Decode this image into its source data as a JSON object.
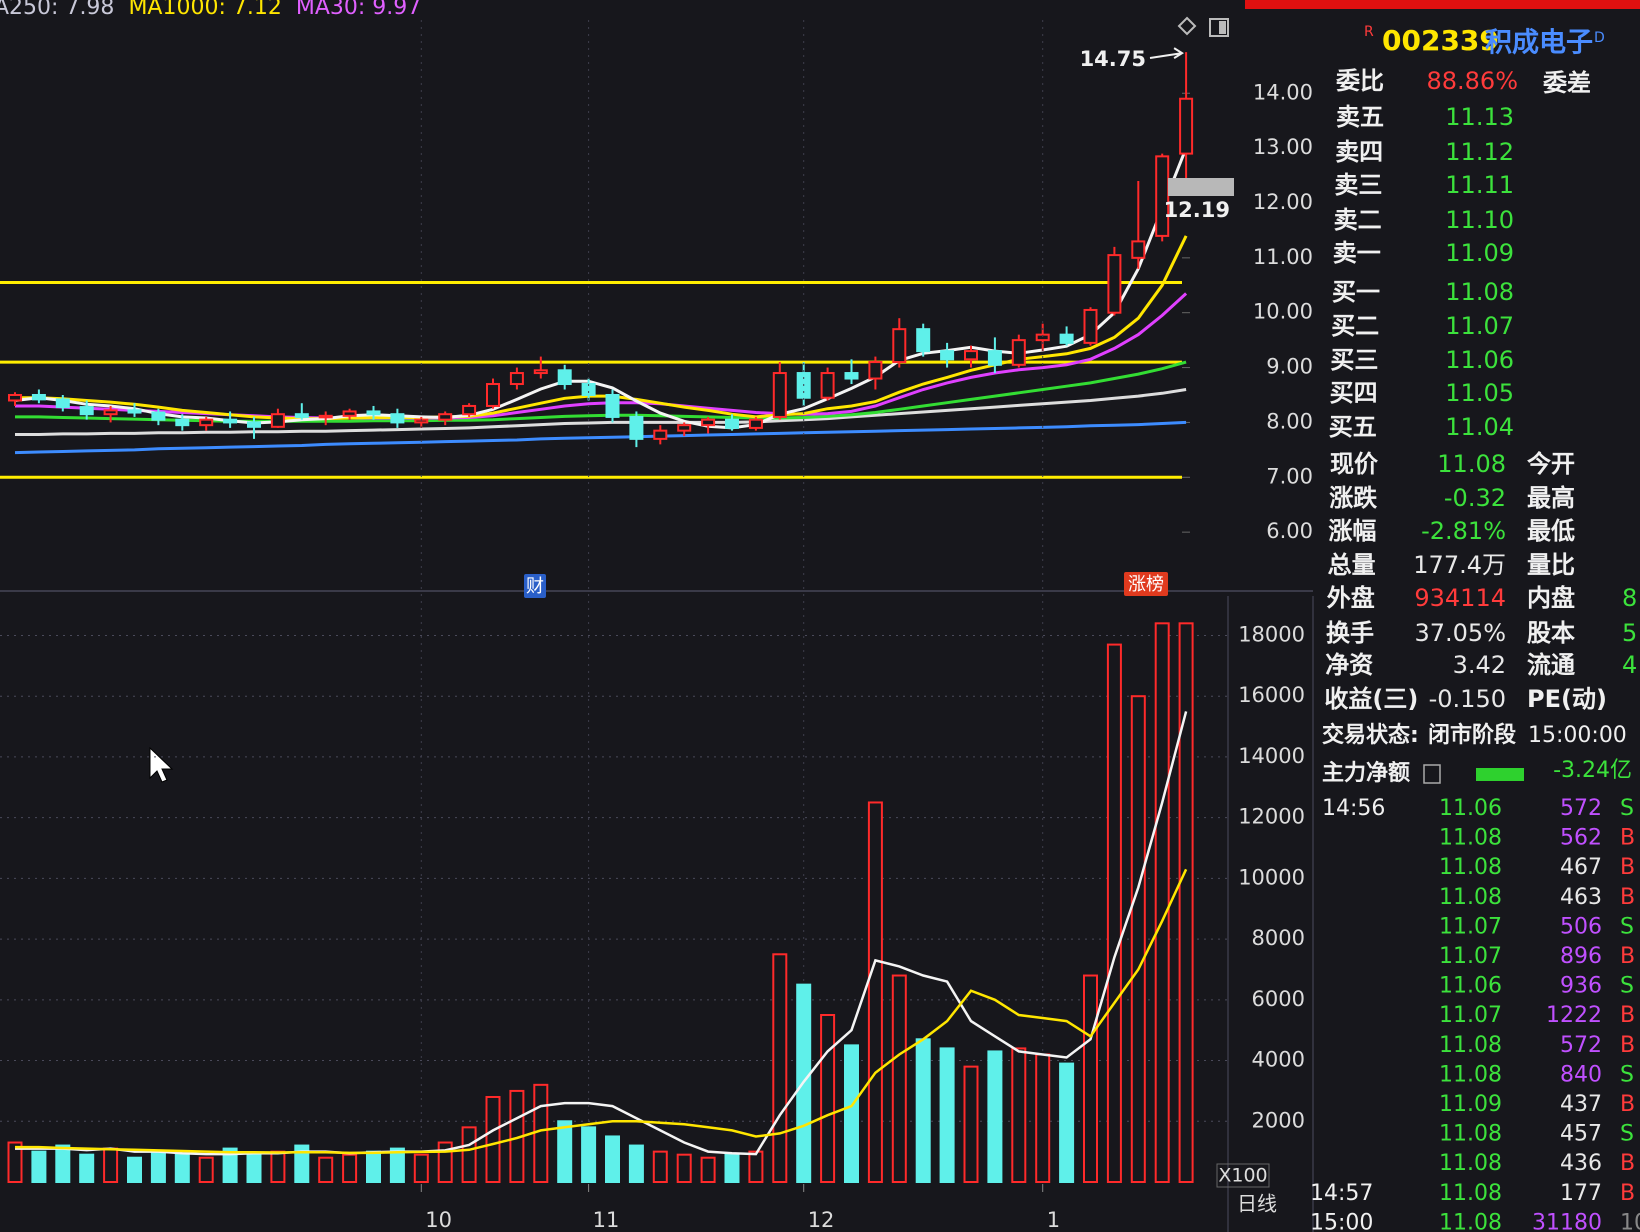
{
  "chart_data": [
    {
      "type": "candlestick",
      "legend": [
        {
          "name": "A250: 7.98",
          "color": "#c8c8d8"
        },
        {
          "name": "MA1000: 7.12",
          "color": "#ffe600"
        },
        {
          "name": "MA30: 9.97",
          "color": "#e060ff"
        }
      ],
      "open": [
        8.4,
        8.5,
        8.42,
        8.28,
        8.15,
        8.22,
        8.18,
        8.05,
        7.95,
        8.05,
        8.0,
        7.92,
        8.15,
        8.1,
        8.12,
        8.2,
        8.15,
        8.0,
        8.05,
        8.15,
        8.3,
        8.7,
        8.9,
        8.95,
        8.7,
        8.5,
        8.1,
        7.7,
        7.85,
        7.95,
        8.05,
        7.9,
        8.1,
        8.9,
        8.45,
        8.9,
        8.8,
        9.1,
        9.7,
        9.3,
        9.15,
        9.3,
        9.05,
        9.5,
        9.6,
        9.45,
        10.0,
        11.0,
        11.4,
        12.9
      ],
      "high": [
        8.55,
        8.6,
        8.5,
        8.4,
        8.3,
        8.35,
        8.25,
        8.15,
        8.1,
        8.2,
        8.1,
        8.25,
        8.35,
        8.2,
        8.25,
        8.3,
        8.25,
        8.1,
        8.2,
        8.35,
        8.8,
        9.0,
        9.2,
        9.05,
        8.8,
        8.6,
        8.2,
        7.95,
        8.0,
        8.1,
        8.15,
        8.1,
        9.1,
        9.1,
        9.0,
        9.15,
        9.2,
        9.9,
        9.8,
        9.45,
        9.4,
        9.55,
        9.6,
        9.8,
        9.75,
        10.1,
        11.2,
        12.4,
        12.9,
        14.75
      ],
      "low": [
        8.3,
        8.35,
        8.2,
        8.05,
        8.0,
        8.1,
        7.95,
        7.85,
        7.85,
        7.9,
        7.7,
        7.9,
        8.05,
        7.95,
        8.05,
        8.05,
        7.9,
        7.9,
        7.95,
        8.1,
        8.25,
        8.6,
        8.8,
        8.6,
        8.4,
        8.0,
        7.55,
        7.6,
        7.75,
        7.8,
        7.85,
        7.85,
        8.05,
        8.3,
        8.4,
        8.7,
        8.6,
        9.0,
        9.2,
        9.0,
        9.0,
        8.9,
        9.0,
        9.3,
        9.4,
        9.4,
        9.95,
        10.8,
        11.3,
        12.2
      ],
      "close": [
        8.5,
        8.42,
        8.28,
        8.15,
        8.22,
        8.18,
        8.05,
        7.95,
        8.05,
        8.0,
        7.92,
        8.15,
        8.1,
        8.12,
        8.2,
        8.15,
        8.0,
        8.05,
        8.15,
        8.3,
        8.7,
        8.9,
        8.95,
        8.7,
        8.5,
        8.1,
        7.7,
        7.85,
        7.95,
        8.05,
        7.9,
        8.05,
        8.9,
        8.45,
        8.9,
        8.8,
        9.1,
        9.7,
        9.3,
        9.15,
        9.3,
        9.05,
        9.5,
        9.6,
        9.45,
        10.05,
        11.05,
        11.3,
        12.85,
        13.9
      ],
      "up_color": "#ff2a2a",
      "down_color": "#5ff0ea",
      "ma_lines": [
        {
          "color": "#3d8cff",
          "values": [
            7.45,
            7.46,
            7.47,
            7.48,
            7.49,
            7.5,
            7.52,
            7.53,
            7.54,
            7.55,
            7.56,
            7.57,
            7.58,
            7.6,
            7.61,
            7.62,
            7.63,
            7.64,
            7.65,
            7.66,
            7.67,
            7.68,
            7.7,
            7.71,
            7.72,
            7.73,
            7.74,
            7.75,
            7.76,
            7.77,
            7.78,
            7.79,
            7.8,
            7.81,
            7.82,
            7.83,
            7.84,
            7.85,
            7.86,
            7.87,
            7.88,
            7.89,
            7.9,
            7.91,
            7.92,
            7.94,
            7.95,
            7.96,
            7.98,
            8.0
          ]
        },
        {
          "color": "#dddddd",
          "values": [
            7.78,
            7.78,
            7.79,
            7.79,
            7.8,
            7.8,
            7.81,
            7.81,
            7.82,
            7.82,
            7.83,
            7.83,
            7.84,
            7.84,
            7.85,
            7.86,
            7.87,
            7.88,
            7.89,
            7.9,
            7.92,
            7.94,
            7.96,
            7.98,
            7.99,
            8.0,
            8.0,
            8.0,
            8.0,
            8.0,
            8.0,
            8.01,
            8.03,
            8.05,
            8.07,
            8.1,
            8.13,
            8.16,
            8.19,
            8.22,
            8.25,
            8.28,
            8.31,
            8.34,
            8.37,
            8.4,
            8.44,
            8.48,
            8.53,
            8.6
          ]
        },
        {
          "color": "#33dd33",
          "values": [
            8.1,
            8.1,
            8.09,
            8.08,
            8.07,
            8.06,
            8.05,
            8.04,
            8.03,
            8.02,
            8.02,
            8.02,
            8.02,
            8.02,
            8.02,
            8.03,
            8.03,
            8.03,
            8.04,
            8.04,
            8.05,
            8.07,
            8.09,
            8.11,
            8.12,
            8.13,
            8.13,
            8.12,
            8.11,
            8.1,
            8.09,
            8.08,
            8.08,
            8.09,
            8.11,
            8.14,
            8.18,
            8.24,
            8.3,
            8.36,
            8.42,
            8.48,
            8.54,
            8.6,
            8.66,
            8.72,
            8.8,
            8.88,
            8.98,
            9.1
          ]
        },
        {
          "color": "#e040ff",
          "values": [
            8.3,
            8.3,
            8.28,
            8.26,
            8.24,
            8.22,
            8.2,
            8.18,
            8.16,
            8.14,
            8.12,
            8.1,
            8.09,
            8.08,
            8.08,
            8.08,
            8.08,
            8.08,
            8.08,
            8.09,
            8.12,
            8.18,
            8.24,
            8.3,
            8.34,
            8.36,
            8.36,
            8.34,
            8.3,
            8.26,
            8.22,
            8.18,
            8.16,
            8.15,
            8.16,
            8.2,
            8.3,
            8.45,
            8.6,
            8.72,
            8.82,
            8.9,
            8.96,
            9.0,
            9.05,
            9.15,
            9.35,
            9.6,
            9.95,
            10.35
          ]
        },
        {
          "color": "#ffe600",
          "values": [
            8.45,
            8.45,
            8.43,
            8.4,
            8.37,
            8.33,
            8.28,
            8.22,
            8.18,
            8.14,
            8.1,
            8.08,
            8.07,
            8.07,
            8.08,
            8.09,
            8.09,
            8.09,
            8.1,
            8.11,
            8.17,
            8.26,
            8.35,
            8.44,
            8.48,
            8.48,
            8.42,
            8.35,
            8.28,
            8.22,
            8.15,
            8.1,
            8.14,
            8.16,
            8.25,
            8.3,
            8.38,
            8.55,
            8.7,
            8.82,
            8.95,
            9.05,
            9.15,
            9.2,
            9.25,
            9.35,
            9.55,
            9.9,
            10.5,
            11.4
          ]
        },
        {
          "color": "#f4f4f4",
          "values": [
            8.4,
            8.45,
            8.4,
            8.33,
            8.3,
            8.25,
            8.16,
            8.1,
            8.08,
            8.03,
            7.99,
            8.01,
            8.05,
            8.07,
            8.12,
            8.14,
            8.12,
            8.1,
            8.09,
            8.13,
            8.24,
            8.42,
            8.61,
            8.75,
            8.75,
            8.63,
            8.39,
            8.17,
            8.02,
            7.93,
            7.9,
            7.96,
            8.15,
            8.25,
            8.43,
            8.62,
            8.83,
            9.13,
            9.26,
            9.31,
            9.37,
            9.3,
            9.26,
            9.32,
            9.39,
            9.6,
            10.0,
            10.8,
            11.9,
            13.0
          ]
        }
      ],
      "hlines": [
        10.55,
        9.1,
        7.0
      ],
      "hline_color": "#ffee00",
      "ylim": [
        5.0,
        15.7
      ],
      "yticks": [
        {
          "value": 14,
          "label": "14.00"
        },
        {
          "value": 13,
          "label": "13.00"
        },
        {
          "value": 12,
          "label": "12.00"
        },
        {
          "value": 11,
          "label": "11.00"
        },
        {
          "value": 10,
          "label": "10.00"
        },
        {
          "value": 9,
          "label": "9.00"
        },
        {
          "value": 8,
          "label": "8.00"
        },
        {
          "value": 7,
          "label": "7.00"
        },
        {
          "value": 6,
          "label": "6.00"
        }
      ],
      "high_label": "14.75",
      "last_label": "12.19",
      "markers": [
        {
          "text": "财",
          "color": "#2a5fc8"
        },
        {
          "text": "涨榜",
          "color": "#e03a1e"
        }
      ]
    },
    {
      "type": "bar",
      "categories": [
        null,
        null,
        null,
        null,
        null,
        null,
        null,
        null,
        null,
        null,
        null,
        null,
        null,
        null,
        null,
        null,
        null,
        "10",
        null,
        null,
        null,
        null,
        null,
        null,
        "11",
        null,
        null,
        null,
        null,
        null,
        null,
        null,
        null,
        "12",
        null,
        null,
        null,
        null,
        null,
        null,
        null,
        null,
        null,
        "1",
        null,
        null,
        null,
        null,
        null,
        null
      ],
      "values": [
        1300,
        1000,
        1200,
        900,
        1100,
        800,
        1000,
        900,
        800,
        1100,
        900,
        1000,
        1200,
        800,
        900,
        1000,
        1100,
        900,
        1300,
        1800,
        2800,
        3000,
        3200,
        2000,
        1800,
        1500,
        1200,
        1000,
        900,
        800,
        900,
        1000,
        7500,
        6500,
        5500,
        4500,
        12500,
        6800,
        4700,
        4400,
        3800,
        4300,
        4400,
        4200,
        3900,
        6800,
        17700,
        16000,
        18400,
        18400
      ],
      "ma_lines": [
        {
          "color": "#f4f4f4",
          "values": [
            1100,
            1100,
            1100,
            1050,
            1100,
            1000,
            1000,
            950,
            920,
            920,
            950,
            950,
            1000,
            1000,
            950,
            980,
            1000,
            1000,
            1040,
            1220,
            1700,
            2100,
            2500,
            2600,
            2600,
            2500,
            2100,
            1700,
            1300,
            1000,
            950,
            920,
            2200,
            3300,
            4300,
            5000,
            7300,
            7100,
            6800,
            6600,
            5300,
            4800,
            4300,
            4200,
            4100,
            4700,
            7400,
            9700,
            12500,
            15500
          ]
        },
        {
          "color": "#ffe600",
          "values": [
            1150,
            1150,
            1120,
            1100,
            1080,
            1060,
            1040,
            1020,
            1000,
            980,
            980,
            970,
            980,
            980,
            960,
            960,
            980,
            990,
            1000,
            1060,
            1250,
            1450,
            1700,
            1800,
            1900,
            2000,
            2000,
            1950,
            1900,
            1800,
            1700,
            1500,
            1600,
            1850,
            2200,
            2500,
            3600,
            4200,
            4700,
            5300,
            6300,
            6000,
            5500,
            5400,
            5300,
            4800,
            5900,
            7000,
            8600,
            10300
          ]
        }
      ],
      "ylim": [
        0,
        19300
      ],
      "yticks": [
        2000,
        4000,
        6000,
        8000,
        10000,
        12000,
        14000,
        16000,
        18000
      ],
      "grid": true,
      "unit_label": "X100",
      "period_label": "日线"
    }
  ],
  "panel": {
    "code_badge": "R",
    "code": "002339",
    "name": "积成电子",
    "name_badge": "D",
    "ratio_row": {
      "label": "委比",
      "value": "88.86%",
      "label2": "委差",
      "color": "#ff3b3b"
    },
    "quotes": [
      {
        "label": "卖五",
        "price": "11.13"
      },
      {
        "label": "卖四",
        "price": "11.12"
      },
      {
        "label": "卖三",
        "price": "11.11"
      },
      {
        "label": "卖二",
        "price": "11.10"
      },
      {
        "label": "卖一",
        "price": "11.09"
      },
      {
        "label": "买一",
        "price": "11.08"
      },
      {
        "label": "买二",
        "price": "11.07"
      },
      {
        "label": "买三",
        "price": "11.06"
      },
      {
        "label": "买四",
        "price": "11.05"
      },
      {
        "label": "买五",
        "price": "11.04"
      }
    ],
    "quote_color": "#3ce23c",
    "stats": [
      {
        "label": "现价",
        "value": "11.08",
        "label2": "今开",
        "color": "#3ce23c"
      },
      {
        "label": "涨跌",
        "value": "-0.32",
        "label2": "最高",
        "color": "#3ce23c"
      },
      {
        "label": "涨幅",
        "value": "-2.81%",
        "label2": "最低",
        "color": "#3ce23c"
      },
      {
        "label": "总量",
        "value": "177.4万",
        "label2": "量比",
        "color": "#e8e8e8"
      },
      {
        "label": "外盘",
        "value": "934114",
        "label2": "内盘",
        "value2": "8",
        "color": "#ff3b3b"
      },
      {
        "label": "换手",
        "value": "37.05%",
        "label2": "股本",
        "value2": "5",
        "color": "#e8e8e8"
      },
      {
        "label": "净资",
        "value": "3.42",
        "label2": "流通",
        "value2": "4",
        "color": "#e8e8e8"
      },
      {
        "label": "收益(三)",
        "value": "-0.150",
        "label2": "PE(动)",
        "color": "#e8e8e8"
      }
    ],
    "status": {
      "label": "交易状态:",
      "value": "闭市阶段",
      "time": "15:00:00"
    },
    "net_flow": {
      "label": "主力净额",
      "value": "-3.24亿",
      "color": "#3ce23c"
    },
    "trade_price_color": "#3ce23c",
    "side_colors": {
      "B": "#ff3b3b",
      "S": "#3ce23c"
    },
    "trades": [
      {
        "time": "14:56",
        "price": "11.06",
        "volume": "572",
        "side": "S",
        "volume_color": "#c050ff"
      },
      {
        "price": "11.08",
        "volume": "562",
        "side": "B",
        "volume_color": "#c050ff"
      },
      {
        "price": "11.08",
        "volume": "467",
        "side": "B",
        "volume_color": "#e8e8e8"
      },
      {
        "price": "11.08",
        "volume": "463",
        "side": "B",
        "volume_color": "#e8e8e8"
      },
      {
        "price": "11.07",
        "volume": "506",
        "side": "S",
        "volume_color": "#c050ff"
      },
      {
        "price": "11.07",
        "volume": "896",
        "side": "B",
        "volume_color": "#c050ff"
      },
      {
        "price": "11.06",
        "volume": "936",
        "side": "S",
        "volume_color": "#c050ff"
      },
      {
        "price": "11.07",
        "volume": "1222",
        "side": "B",
        "volume_color": "#c050ff"
      },
      {
        "price": "11.08",
        "volume": "572",
        "side": "B",
        "volume_color": "#c050ff"
      },
      {
        "price": "11.08",
        "volume": "840",
        "side": "S",
        "volume_color": "#c050ff"
      },
      {
        "price": "11.09",
        "volume": "437",
        "side": "B",
        "volume_color": "#e8e8e8"
      },
      {
        "price": "11.08",
        "volume": "457",
        "side": "S",
        "volume_color": "#e8e8e8"
      },
      {
        "price": "11.08",
        "volume": "436",
        "side": "B",
        "volume_color": "#e8e8e8"
      },
      {
        "time": "14:57",
        "price": "11.08",
        "volume": "177",
        "side": "B",
        "volume_color": "#e8e8e8"
      },
      {
        "time": "15:00",
        "price": "11.08",
        "volume": "31180",
        "side": "10",
        "volume_color": "#c050ff"
      }
    ]
  }
}
